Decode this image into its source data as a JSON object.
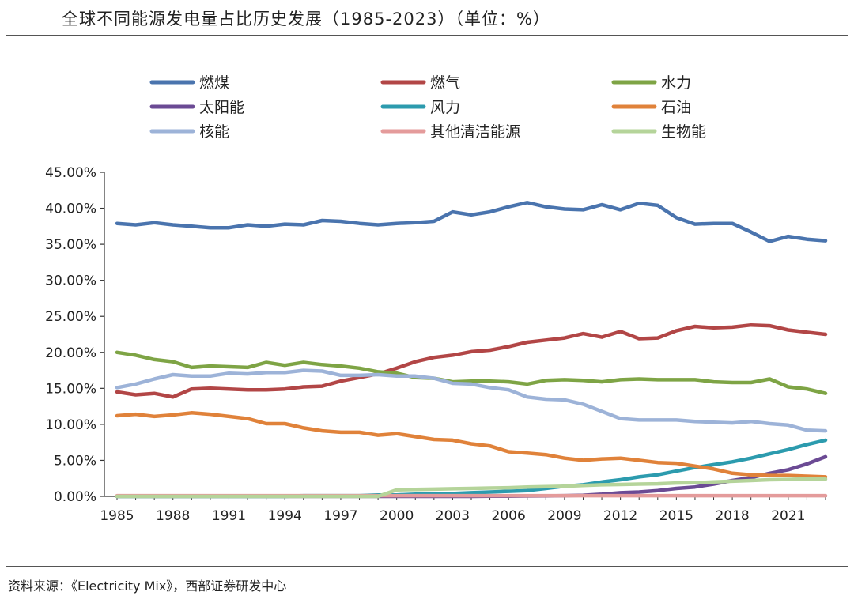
{
  "title": "全球不同能源发电量占比历史发展（1985-2023）（单位：%）",
  "source": "资料来源：《Electricity Mix》，西部证券研发中心",
  "chart_data": {
    "type": "line",
    "title": "全球不同能源发电量占比历史发展（1985-2023）（单位：%）",
    "xlabel": "",
    "ylabel": "",
    "x": [
      1985,
      1986,
      1987,
      1988,
      1989,
      1990,
      1991,
      1992,
      1993,
      1994,
      1995,
      1996,
      1997,
      1998,
      1999,
      2000,
      2001,
      2002,
      2003,
      2004,
      2005,
      2006,
      2007,
      2008,
      2009,
      2010,
      2011,
      2012,
      2013,
      2014,
      2015,
      2016,
      2017,
      2018,
      2019,
      2020,
      2021,
      2022,
      2023
    ],
    "x_tick_labels": [
      "1985",
      "1988",
      "1991",
      "1994",
      "1997",
      "2000",
      "2003",
      "2006",
      "2009",
      "2012",
      "2015",
      "2018",
      "2021"
    ],
    "x_tick_values": [
      1985,
      1988,
      1991,
      1994,
      1997,
      2000,
      2003,
      2006,
      2009,
      2012,
      2015,
      2018,
      2021
    ],
    "ylim": [
      0,
      45
    ],
    "y_tick_values": [
      0,
      5,
      10,
      15,
      20,
      25,
      30,
      35,
      40,
      45
    ],
    "y_tick_labels": [
      "0.00%",
      "5.00%",
      "10.00%",
      "15.00%",
      "20.00%",
      "25.00%",
      "30.00%",
      "35.00%",
      "40.00%",
      "45.00%"
    ],
    "grid": false,
    "legend_position": "top",
    "series": [
      {
        "name": "燃煤",
        "color": "#4A74AE",
        "values": [
          37.9,
          37.7,
          38.0,
          37.7,
          37.5,
          37.3,
          37.3,
          37.7,
          37.5,
          37.8,
          37.7,
          38.3,
          38.2,
          37.9,
          37.7,
          37.9,
          38.0,
          38.2,
          39.5,
          39.1,
          39.5,
          40.2,
          40.8,
          40.2,
          39.9,
          39.8,
          40.5,
          39.8,
          40.7,
          40.4,
          38.7,
          37.8,
          37.9,
          37.9,
          36.7,
          35.4,
          36.1,
          35.7,
          35.5
        ]
      },
      {
        "name": "燃气",
        "color": "#B24646",
        "values": [
          14.5,
          14.1,
          14.3,
          13.8,
          14.9,
          15.0,
          14.9,
          14.8,
          14.8,
          14.9,
          15.2,
          15.3,
          16.0,
          16.5,
          17.0,
          17.8,
          18.7,
          19.3,
          19.6,
          20.1,
          20.3,
          20.8,
          21.4,
          21.7,
          22.0,
          22.6,
          22.1,
          22.9,
          21.9,
          22.0,
          23.0,
          23.6,
          23.4,
          23.5,
          23.8,
          23.7,
          23.1,
          22.8,
          22.5
        ]
      },
      {
        "name": "水力",
        "color": "#7EA445",
        "values": [
          20.0,
          19.6,
          19.0,
          18.7,
          17.9,
          18.1,
          18.0,
          17.9,
          18.6,
          18.2,
          18.6,
          18.3,
          18.1,
          17.8,
          17.3,
          17.1,
          16.5,
          16.4,
          15.9,
          16.0,
          16.0,
          15.9,
          15.6,
          16.1,
          16.2,
          16.1,
          15.9,
          16.2,
          16.3,
          16.2,
          16.2,
          16.2,
          15.9,
          15.8,
          15.8,
          16.3,
          15.2,
          14.9,
          14.3
        ]
      },
      {
        "name": "太阳能",
        "color": "#6B4A94",
        "values": [
          0,
          0,
          0,
          0,
          0,
          0,
          0,
          0,
          0,
          0,
          0,
          0,
          0,
          0,
          0,
          0,
          0,
          0,
          0,
          0,
          0.02,
          0.03,
          0.05,
          0.07,
          0.1,
          0.15,
          0.3,
          0.5,
          0.6,
          0.8,
          1.1,
          1.3,
          1.7,
          2.2,
          2.6,
          3.2,
          3.7,
          4.5,
          5.5
        ]
      },
      {
        "name": "风力",
        "color": "#2C9BAE",
        "values": [
          0,
          0,
          0,
          0,
          0,
          0,
          0,
          0,
          0,
          0,
          0.1,
          0.1,
          0.1,
          0.1,
          0.2,
          0.2,
          0.3,
          0.35,
          0.4,
          0.5,
          0.6,
          0.7,
          0.8,
          1.1,
          1.4,
          1.6,
          2.0,
          2.3,
          2.7,
          3.0,
          3.5,
          4.0,
          4.4,
          4.8,
          5.3,
          5.9,
          6.5,
          7.2,
          7.8
        ]
      },
      {
        "name": "石油",
        "color": "#E0823A",
        "values": [
          11.2,
          11.4,
          11.1,
          11.3,
          11.6,
          11.4,
          11.1,
          10.8,
          10.1,
          10.1,
          9.5,
          9.1,
          8.9,
          8.9,
          8.5,
          8.7,
          8.3,
          7.9,
          7.8,
          7.3,
          7.0,
          6.2,
          6.0,
          5.8,
          5.3,
          5.0,
          5.2,
          5.3,
          5.0,
          4.7,
          4.6,
          4.2,
          3.8,
          3.2,
          3.0,
          2.9,
          2.9,
          2.8,
          2.7
        ]
      },
      {
        "name": "核能",
        "color": "#9DB3D8",
        "values": [
          15.1,
          15.6,
          16.3,
          16.9,
          16.7,
          16.7,
          17.1,
          17.0,
          17.2,
          17.2,
          17.5,
          17.4,
          16.8,
          16.8,
          16.9,
          16.7,
          16.7,
          16.4,
          15.7,
          15.6,
          15.1,
          14.8,
          13.8,
          13.5,
          13.4,
          12.8,
          11.8,
          10.8,
          10.6,
          10.6,
          10.6,
          10.4,
          10.3,
          10.2,
          10.4,
          10.1,
          9.9,
          9.2,
          9.1
        ]
      },
      {
        "name": "其他清洁能源",
        "color": "#E49B9B",
        "values": [
          0.1,
          0.1,
          0.1,
          0.1,
          0.1,
          0.1,
          0.1,
          0.1,
          0.1,
          0.1,
          0.1,
          0.1,
          0.1,
          0.1,
          0.1,
          0.1,
          0.1,
          0.1,
          0.1,
          0.1,
          0.1,
          0.1,
          0.1,
          0.1,
          0.1,
          0.1,
          0.1,
          0.1,
          0.1,
          0.1,
          0.1,
          0.1,
          0.1,
          0.1,
          0.1,
          0.1,
          0.1,
          0.1,
          0.1
        ]
      },
      {
        "name": "生物能",
        "color": "#B5D49A",
        "values": [
          0,
          0,
          0,
          0,
          0,
          0,
          0,
          0,
          0,
          0,
          0,
          0,
          0,
          0,
          0,
          0.9,
          0.95,
          1.0,
          1.05,
          1.1,
          1.15,
          1.2,
          1.3,
          1.35,
          1.4,
          1.5,
          1.6,
          1.65,
          1.7,
          1.75,
          1.85,
          1.9,
          2.0,
          2.1,
          2.2,
          2.3,
          2.35,
          2.4,
          2.4
        ]
      }
    ]
  }
}
